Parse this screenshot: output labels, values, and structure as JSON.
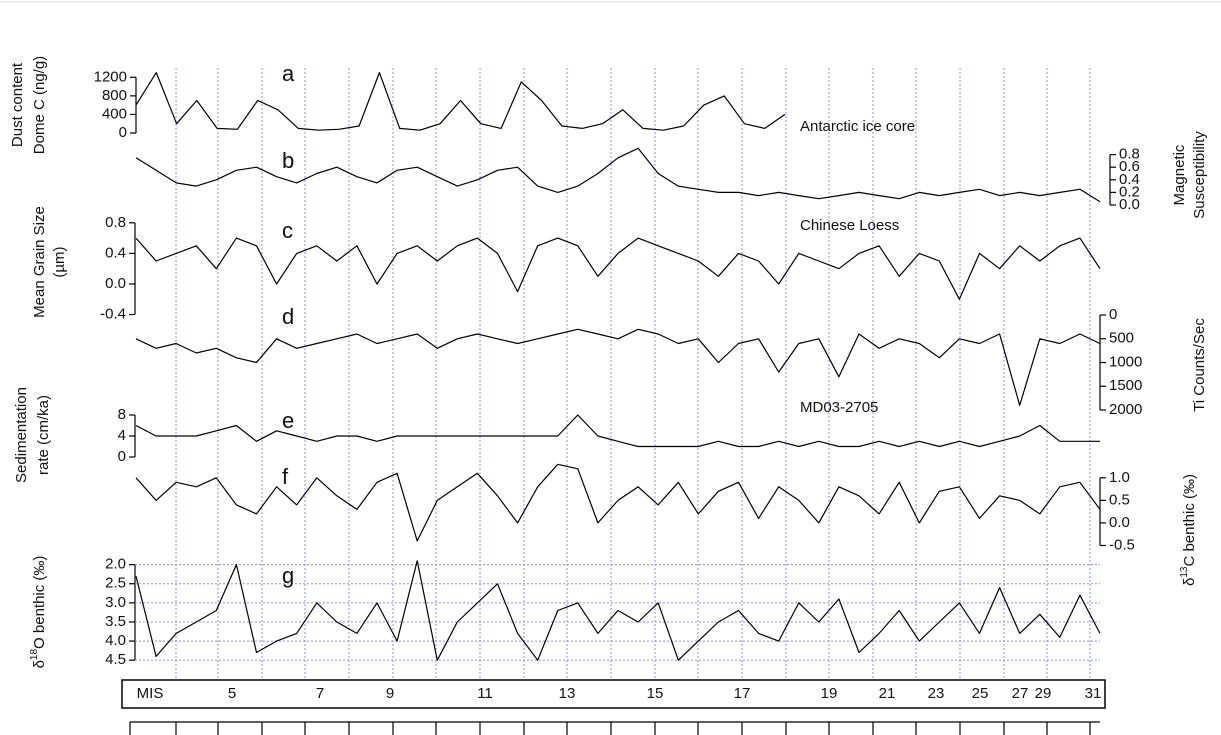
{
  "chart_data": [
    {
      "type": "line",
      "label": "a",
      "ylabel": [
        "Dust content",
        "Dome C (ng/g)"
      ],
      "annotation": "Antarctic ice core",
      "color": "#000000",
      "ylim": [
        0,
        1400
      ],
      "yticks": [
        0,
        400,
        800,
        1200
      ],
      "values": [
        600,
        1300,
        200,
        700,
        100,
        80,
        700,
        500,
        100,
        60,
        80,
        150,
        1300,
        100,
        60,
        200,
        700,
        200,
        100,
        1100,
        700,
        150,
        100,
        200,
        500,
        100,
        60,
        150,
        600,
        800,
        200,
        100,
        400
      ]
    },
    {
      "type": "line",
      "label": "b",
      "ylabel": [
        "Magnetic",
        "Susceptibility"
      ],
      "color": "#000000",
      "ylim": [
        0,
        1.0
      ],
      "yticks": [
        {
          "value": 0,
          "label": "0.0"
        },
        0.2,
        0.4,
        0.6,
        0.8
      ],
      "values": [
        0.75,
        0.55,
        0.35,
        0.3,
        0.4,
        0.55,
        0.6,
        0.45,
        0.35,
        0.5,
        0.6,
        0.45,
        0.35,
        0.55,
        0.6,
        0.45,
        0.3,
        0.4,
        0.55,
        0.6,
        0.3,
        0.2,
        0.3,
        0.5,
        0.75,
        0.9,
        0.5,
        0.3,
        0.25,
        0.2,
        0.2,
        0.15,
        0.2,
        0.15,
        0.1,
        0.15,
        0.2,
        0.15,
        0.1,
        0.2,
        0.15,
        0.2,
        0.25,
        0.15,
        0.2,
        0.15,
        0.2,
        0.25,
        0.05
      ]
    },
    {
      "type": "line",
      "label": "c",
      "ylabel": [
        "Mean Grain Size",
        "(µm)"
      ],
      "annotation": "Chinese Loess",
      "color": "#000000",
      "ylim": [
        -0.55,
        0.85
      ],
      "yticks": [
        -0.4,
        {
          "value": 0,
          "label": "0.0"
        },
        0.4,
        0.8
      ],
      "values": [
        0.6,
        0.3,
        0.4,
        0.5,
        0.2,
        0.6,
        0.5,
        0.0,
        0.4,
        0.5,
        0.3,
        0.5,
        0.0,
        0.4,
        0.5,
        0.3,
        0.5,
        0.6,
        0.4,
        -0.1,
        0.5,
        0.6,
        0.5,
        0.1,
        0.4,
        0.6,
        0.5,
        0.4,
        0.3,
        0.1,
        0.4,
        0.3,
        0.0,
        0.4,
        0.3,
        0.2,
        0.4,
        0.5,
        0.1,
        0.4,
        0.3,
        -0.2,
        0.4,
        0.2,
        0.5,
        0.3,
        0.5,
        0.6,
        0.2
      ]
    },
    {
      "type": "line",
      "label": "d",
      "ylabel": [
        "Ti Counts/Sec"
      ],
      "color": "#000000",
      "inverted": true,
      "ylim": [
        0,
        2000
      ],
      "yticks": [
        0,
        500,
        1000,
        1500,
        2000
      ],
      "values": [
        500,
        700,
        600,
        800,
        700,
        900,
        1000,
        500,
        700,
        600,
        500,
        400,
        600,
        500,
        400,
        700,
        500,
        400,
        500,
        600,
        500,
        400,
        300,
        400,
        500,
        300,
        400,
        600,
        500,
        1000,
        600,
        500,
        1200,
        600,
        500,
        1300,
        400,
        700,
        500,
        600,
        900,
        500,
        600,
        400,
        1900,
        500,
        600,
        400,
        600
      ]
    },
    {
      "type": "line",
      "label": "e",
      "ylabel": [
        "Sedimentation",
        "rate (cm/ka)"
      ],
      "annotation": "MD03-2705",
      "color": "#000000",
      "ylim": [
        0,
        8
      ],
      "yticks": [
        0,
        4,
        8
      ],
      "values": [
        6,
        4,
        4,
        4,
        5,
        6,
        3,
        5,
        4,
        3,
        4,
        4,
        3,
        4,
        4,
        4,
        4,
        4,
        4,
        4,
        4,
        4,
        8,
        4,
        3,
        2,
        2,
        2,
        2,
        3,
        2,
        2,
        3,
        2,
        3,
        2,
        2,
        3,
        2,
        3,
        2,
        3,
        2,
        3,
        4,
        6,
        3,
        3,
        3
      ]
    },
    {
      "type": "line",
      "label": "f",
      "ylabel": [
        [
          "δ",
          "13",
          "C benthic  (‰)"
        ]
      ],
      "color": "#000000",
      "ylim": [
        -0.6,
        1.35
      ],
      "yticks": [
        -0.5,
        {
          "value": 0,
          "label": "0.0"
        },
        0.5,
        {
          "value": 1,
          "label": "1.0"
        }
      ],
      "values": [
        1.0,
        0.5,
        0.9,
        0.8,
        1.0,
        0.4,
        0.2,
        0.8,
        0.4,
        1.0,
        0.6,
        0.3,
        0.9,
        1.1,
        -0.4,
        0.5,
        0.8,
        1.1,
        0.6,
        0.0,
        0.8,
        1.3,
        1.2,
        0.0,
        0.5,
        0.8,
        0.4,
        0.9,
        0.2,
        0.7,
        0.9,
        0.1,
        0.8,
        0.5,
        0.0,
        0.8,
        0.6,
        0.2,
        0.9,
        0.0,
        0.7,
        0.8,
        0.1,
        0.6,
        0.5,
        0.2,
        0.8,
        0.9,
        0.3
      ]
    },
    {
      "type": "line",
      "label": "g",
      "ylabel": [
        [
          "δ",
          "18",
          "O benthic (‰)"
        ]
      ],
      "color": "#000000",
      "inverted": true,
      "grid": true,
      "ylim": [
        1.8,
        4.6
      ],
      "yticks": [
        {
          "value": 2,
          "label": "2.0"
        },
        2.5,
        {
          "value": 3,
          "label": "3.0"
        },
        3.5,
        {
          "value": 4,
          "label": "4.0"
        },
        4.5
      ],
      "values": [
        2.3,
        4.4,
        3.8,
        3.5,
        3.2,
        2.0,
        4.3,
        4.0,
        3.8,
        3.0,
        3.5,
        3.8,
        3.0,
        4.0,
        1.9,
        4.5,
        3.5,
        3.0,
        2.5,
        3.8,
        4.5,
        3.2,
        3.0,
        3.8,
        3.2,
        3.5,
        3.0,
        4.5,
        4.0,
        3.5,
        3.2,
        3.8,
        4.0,
        3.0,
        3.5,
        2.9,
        4.3,
        3.8,
        3.2,
        4.0,
        3.5,
        3.0,
        3.8,
        2.6,
        3.8,
        3.3,
        3.9,
        2.8,
        3.8
      ]
    }
  ],
  "mis_bar": {
    "labels": [
      "MIS",
      "5",
      "7",
      "9",
      "11",
      "13",
      "15",
      "17",
      "19",
      "21",
      "23",
      "25",
      "27",
      "29",
      "31"
    ]
  }
}
